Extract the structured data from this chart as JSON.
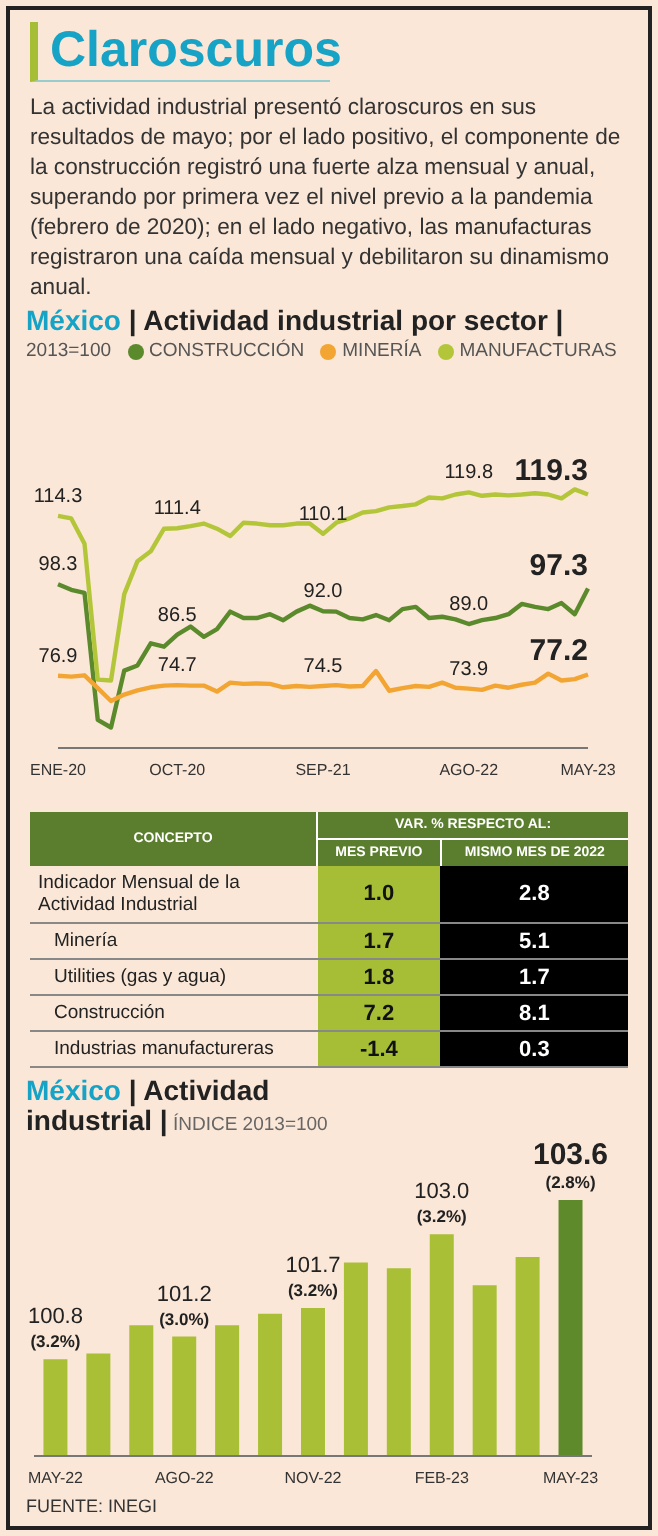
{
  "chart_data": [
    {
      "type": "other",
      "title": "Claroscuros",
      "annotations": [
        "La actividad industrial presentó claroscuros en sus resultados de mayo; por el lado positivo, el componente de la construcción registró una fuerte alza mensual y anual, superando por primera vez el nivel previo a la pandemia (febrero de 2020); en el lado negativo, las manufacturas registraron una caída mensual y debilitaron su dinamismo anual."
      ]
    },
    {
      "type": "line",
      "title": "México | Actividad industrial por sector |",
      "subtitle": "2013=100",
      "legend": "top",
      "tick_labels": "x",
      "categories": [
        "ENE-20",
        null,
        null,
        null,
        null,
        null,
        null,
        null,
        null,
        "OCT-20",
        null,
        null,
        null,
        null,
        null,
        null,
        null,
        null,
        null,
        null,
        "SEP-21",
        null,
        null,
        null,
        null,
        null,
        null,
        null,
        null,
        null,
        null,
        "AGO-22",
        null,
        null,
        null,
        null,
        null,
        null,
        null,
        null,
        "MAY-23"
      ],
      "series": [
        {
          "name": "CONSTRUCCIÓN",
          "color": "#5b8a2d",
          "values": [
            98.3,
            97.0,
            96.3,
            66.6,
            64.8,
            78.1,
            79.3,
            84.5,
            83.7,
            86.5,
            88.4,
            86.0,
            87.8,
            91.9,
            90.4,
            90.4,
            91.3,
            89.9,
            91.9,
            93.3,
            92.0,
            91.9,
            90.4,
            90.1,
            91.1,
            89.9,
            92.5,
            93.0,
            90.4,
            90.7,
            90.1,
            89.0,
            89.9,
            90.4,
            91.3,
            93.7,
            93.0,
            92.5,
            93.9,
            91.3,
            97.3
          ],
          "value_labels": [
            "98.3",
            null,
            null,
            null,
            null,
            null,
            null,
            null,
            null,
            "86.5",
            null,
            null,
            null,
            null,
            null,
            null,
            null,
            null,
            null,
            null,
            "92.0",
            null,
            null,
            null,
            null,
            null,
            null,
            null,
            null,
            null,
            null,
            "89.0",
            null,
            null,
            null,
            null,
            null,
            null,
            null,
            null,
            "97.3"
          ]
        },
        {
          "name": "MINERÍA",
          "color": "#f2a532",
          "values": [
            76.9,
            76.7,
            77.0,
            74.0,
            71.0,
            72.5,
            73.5,
            74.2,
            74.6,
            74.7,
            74.6,
            74.6,
            73.2,
            75.3,
            75.0,
            75.1,
            75.0,
            74.2,
            74.5,
            74.3,
            74.5,
            74.7,
            74.4,
            74.5,
            78.0,
            73.4,
            74.0,
            74.5,
            74.3,
            75.3,
            74.1,
            73.9,
            73.6,
            74.6,
            74.1,
            74.8,
            75.3,
            77.4,
            75.8,
            76.1,
            77.2
          ],
          "value_labels": [
            "76.9",
            null,
            null,
            null,
            null,
            null,
            null,
            null,
            null,
            "74.7",
            null,
            null,
            null,
            null,
            null,
            null,
            null,
            null,
            null,
            null,
            "74.5",
            null,
            null,
            null,
            null,
            null,
            null,
            null,
            null,
            null,
            null,
            "73.9",
            null,
            null,
            null,
            null,
            null,
            null,
            null,
            null,
            "77.2"
          ]
        },
        {
          "name": "MANUFACTURAS",
          "color": "#b3c63a",
          "values": [
            114.3,
            113.7,
            107.8,
            76.0,
            75.8,
            96.0,
            103.7,
            106.0,
            111.3,
            111.4,
            111.9,
            112.5,
            111.3,
            109.6,
            112.7,
            112.5,
            112.1,
            112.1,
            112.5,
            112.5,
            110.1,
            112.7,
            113.7,
            115.1,
            115.4,
            116.3,
            116.6,
            117.0,
            118.6,
            118.4,
            119.3,
            119.8,
            119.0,
            119.3,
            119.1,
            119.3,
            119.6,
            119.3,
            118.4,
            120.5,
            119.3
          ],
          "value_labels": [
            "114.3",
            null,
            null,
            null,
            null,
            null,
            null,
            null,
            null,
            "111.4",
            null,
            null,
            null,
            null,
            null,
            null,
            null,
            null,
            null,
            null,
            "110.1",
            null,
            null,
            null,
            null,
            null,
            null,
            null,
            null,
            null,
            null,
            "119.8",
            null,
            null,
            null,
            null,
            null,
            null,
            null,
            null,
            "119.3"
          ]
        }
      ]
    },
    {
      "type": "other",
      "ylabel": "CONCEPTO",
      "legend_title": "VAR. % RESPECTO AL:",
      "categories": [
        "MES PREVIO",
        "MISMO MES DE 2022"
      ],
      "y_categories": [
        "Indicador Mensual de la Actividad Industrial",
        "Minería",
        "Utilities (gas y agua)",
        "Construcción",
        "Industrias manufactureras"
      ],
      "cell_labels": [
        [
          "1.0",
          "2.8"
        ],
        [
          "1.7",
          "5.1"
        ],
        [
          "1.8",
          "1.7"
        ],
        [
          "7.2",
          "8.1"
        ],
        [
          "-1.4",
          "0.3"
        ]
      ]
    },
    {
      "type": "bar",
      "title": "México | Actividad industrial |",
      "subtitle": "ÍNDICE 2013=100",
      "tick_labels": "x",
      "ylim": [
        99.1,
        103.6
      ],
      "categories": [
        "MAY-22",
        null,
        null,
        "AGO-22",
        null,
        null,
        "NOV-22",
        null,
        null,
        "FEB-23",
        null,
        null,
        "MAY-23"
      ],
      "values": [
        100.8,
        100.9,
        101.4,
        101.2,
        101.4,
        101.6,
        101.7,
        102.5,
        102.4,
        103.0,
        102.1,
        102.6,
        103.6
      ],
      "colors": [
        "#a9bf36",
        "#a9bf36",
        "#a9bf36",
        "#a9bf36",
        "#a9bf36",
        "#a9bf36",
        "#a9bf36",
        "#a9bf36",
        "#a9bf36",
        "#a9bf36",
        "#a9bf36",
        "#a9bf36",
        "#5e8a2c"
      ],
      "value_labels": [
        "100.8\n(3.2%)",
        null,
        null,
        "101.2\n(3.0%)",
        null,
        null,
        "101.7\n(3.2%)",
        null,
        null,
        "103.0\n(3.2%)",
        null,
        null,
        "103.6\n(2.8%)"
      ],
      "annotations": [
        "FUENTE: INEGI"
      ]
    }
  ]
}
